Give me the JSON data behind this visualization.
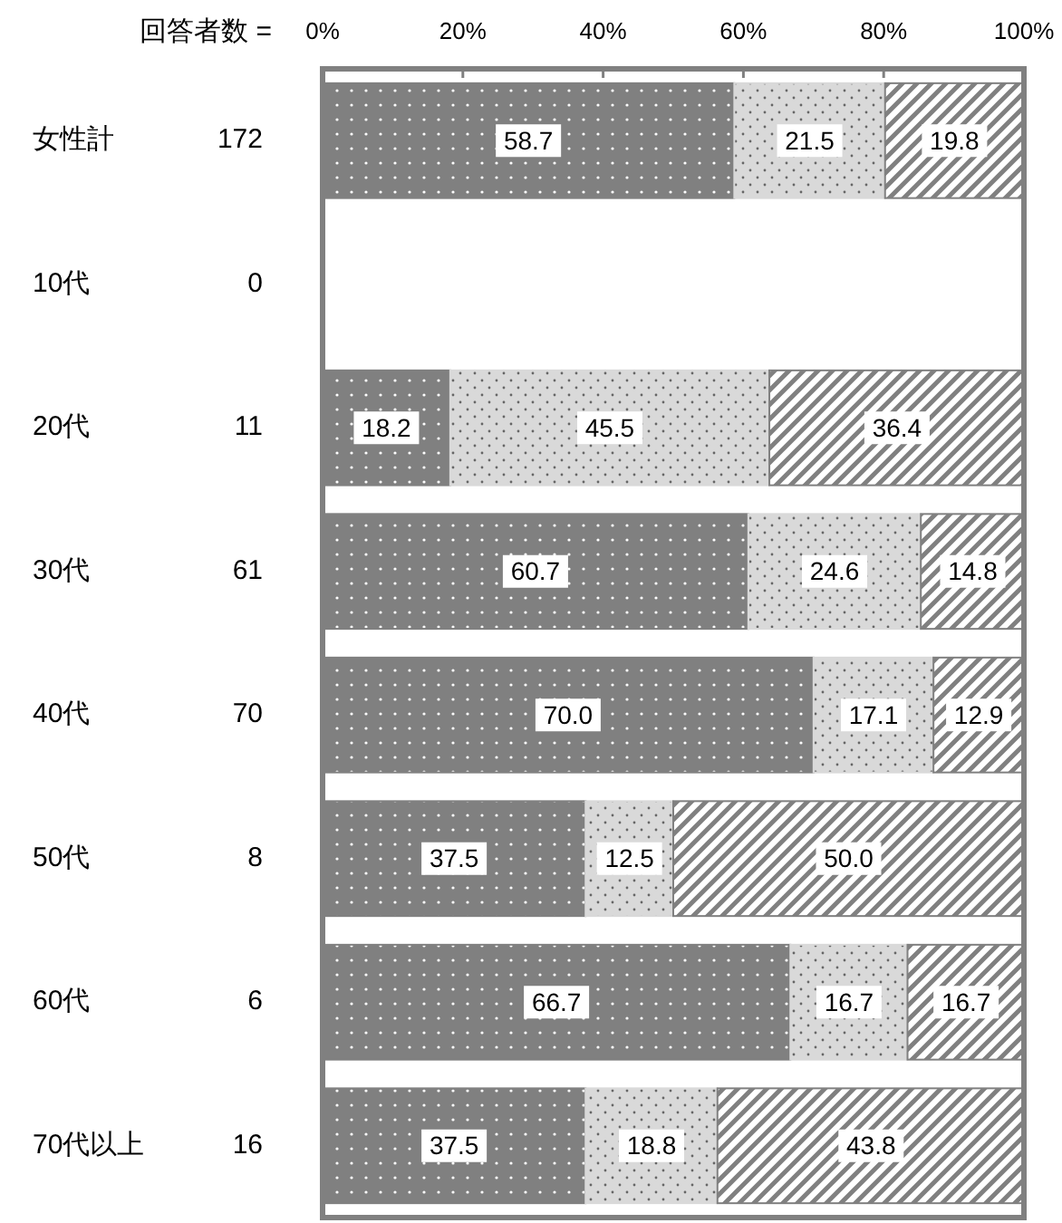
{
  "chart_data": {
    "type": "bar",
    "orientation": "horizontal",
    "stacked": true,
    "categories": [
      "女性計",
      "10代",
      "20代",
      "30代",
      "40代",
      "50代",
      "60代",
      "70代以上"
    ],
    "series": [
      {
        "color": "#808080",
        "values": [
          58.7,
          null,
          18.2,
          60.7,
          70.0,
          37.5,
          66.7,
          37.5
        ],
        "value_labels": [
          "58.7",
          null,
          "18.2",
          "60.7",
          "70.0",
          "37.5",
          "66.7",
          "37.5"
        ]
      },
      {
        "color": "#d9d9d9",
        "values": [
          21.5,
          null,
          45.5,
          24.6,
          17.1,
          12.5,
          16.7,
          18.8
        ],
        "value_labels": [
          "21.5",
          null,
          "45.5",
          "24.6",
          "17.1",
          "12.5",
          "16.7",
          "18.8"
        ]
      },
      {
        "color": "#808080",
        "values": [
          19.8,
          null,
          36.4,
          14.8,
          12.9,
          50.0,
          16.7,
          43.8
        ],
        "value_labels": [
          "19.8",
          null,
          "36.4",
          "14.8",
          "12.9",
          "50.0",
          "16.7",
          "43.8"
        ]
      }
    ],
    "xlim": [
      0,
      100
    ],
    "xticks": [
      {
        "value": 0,
        "label": "0%"
      },
      {
        "value": 20,
        "label": "20%"
      },
      {
        "value": 40,
        "label": "40%"
      },
      {
        "value": 60,
        "label": "60%"
      },
      {
        "value": 80,
        "label": "80%"
      },
      {
        "value": 100,
        "label": "100%"
      }
    ],
    "annotations": [
      "回答者数 =",
      "172",
      "0",
      "11",
      "61",
      "70",
      "8",
      "6",
      "16"
    ]
  }
}
